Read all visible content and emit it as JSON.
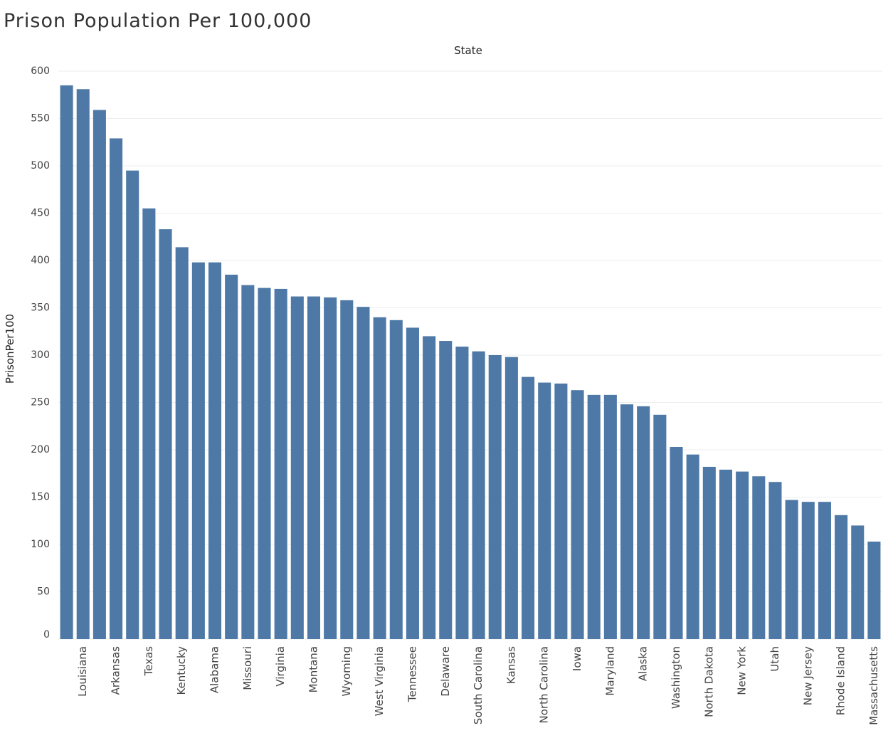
{
  "chart_data": {
    "type": "bar",
    "title": "Prison Population Per 100,000",
    "x_axis_label": "State",
    "y_axis_label": "PrisonPer100",
    "categories": [
      null,
      "Louisiana",
      null,
      "Arkansas",
      null,
      "Texas",
      null,
      "Kentucky",
      null,
      "Alabama",
      null,
      "Missouri",
      null,
      "Virginia",
      null,
      "Montana",
      null,
      "Wyoming",
      null,
      "West Virginia",
      null,
      "Tennessee",
      null,
      "Delaware",
      null,
      "South Carolina",
      null,
      "Kansas",
      null,
      "North Carolina",
      null,
      "Iowa",
      null,
      "Maryland",
      null,
      "Alaska",
      null,
      "Washington",
      null,
      "North Dakota",
      null,
      "New York",
      null,
      "Utah",
      null,
      "New Jersey",
      null,
      "Rhode Island",
      null,
      "Massachusetts"
    ],
    "values": [
      585,
      581,
      559,
      529,
      495,
      455,
      433,
      414,
      398,
      398,
      385,
      374,
      371,
      370,
      362,
      362,
      361,
      358,
      351,
      340,
      337,
      329,
      320,
      315,
      309,
      304,
      300,
      298,
      277,
      271,
      270,
      263,
      258,
      258,
      248,
      246,
      237,
      203,
      195,
      182,
      179,
      177,
      172,
      166,
      147,
      145,
      145,
      131,
      120,
      103
    ],
    "color": "#4e79a7",
    "ylim": [
      0,
      600
    ],
    "yticks": [
      0,
      50,
      100,
      150,
      200,
      250,
      300,
      350,
      400,
      450,
      500,
      550,
      600
    ],
    "grid": true
  }
}
